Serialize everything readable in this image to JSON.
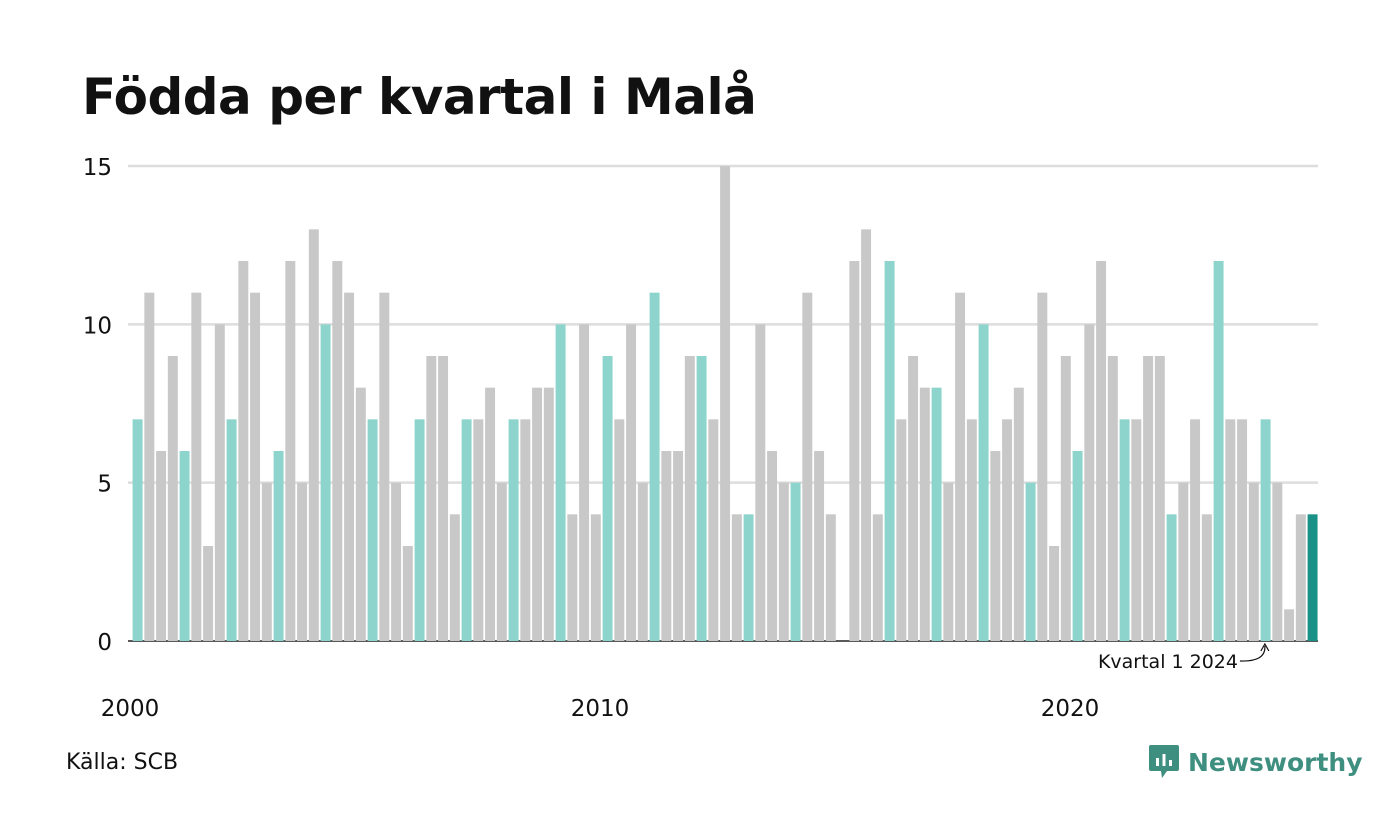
{
  "header": {
    "title": "Födda per kvartal i Malå"
  },
  "footer": {
    "source": "Källa: SCB",
    "brand": "Newsworthy"
  },
  "colors": {
    "q1": "#8dd4cc",
    "other": "#c8c8c8",
    "latest": "#1a9186",
    "grid": "#dddddd",
    "axis": "#222222"
  },
  "chart_data": {
    "type": "bar",
    "title": "Födda per kvartal i Malå",
    "xlabel": "",
    "ylabel": "",
    "ylim": [
      0,
      15
    ],
    "yticks": [
      0,
      5,
      10,
      15
    ],
    "xticks": [
      "2000",
      "2010",
      "2020"
    ],
    "grid": true,
    "start": {
      "year": 2000,
      "quarter": 1
    },
    "annotation": {
      "text": "Kvartal 1 2024",
      "target": "2024 Q1",
      "value": 7
    },
    "highlight": "2025 Q1",
    "values": [
      7,
      11,
      6,
      9,
      6,
      11,
      3,
      10,
      7,
      12,
      11,
      5,
      6,
      12,
      5,
      13,
      10,
      12,
      11,
      8,
      7,
      11,
      5,
      3,
      7,
      9,
      9,
      4,
      7,
      7,
      8,
      5,
      7,
      7,
      8,
      8,
      10,
      4,
      10,
      4,
      9,
      7,
      10,
      5,
      11,
      6,
      6,
      9,
      9,
      7,
      15,
      4,
      4,
      10,
      6,
      5,
      5,
      11,
      6,
      4,
      0,
      12,
      13,
      4,
      12,
      7,
      9,
      8,
      8,
      5,
      11,
      7,
      10,
      6,
      7,
      8,
      5,
      11,
      3,
      9,
      6,
      10,
      12,
      9,
      7,
      7,
      9,
      9,
      4,
      5,
      7,
      4,
      12,
      7,
      7,
      5,
      7,
      5,
      1,
      4,
      4
    ]
  }
}
